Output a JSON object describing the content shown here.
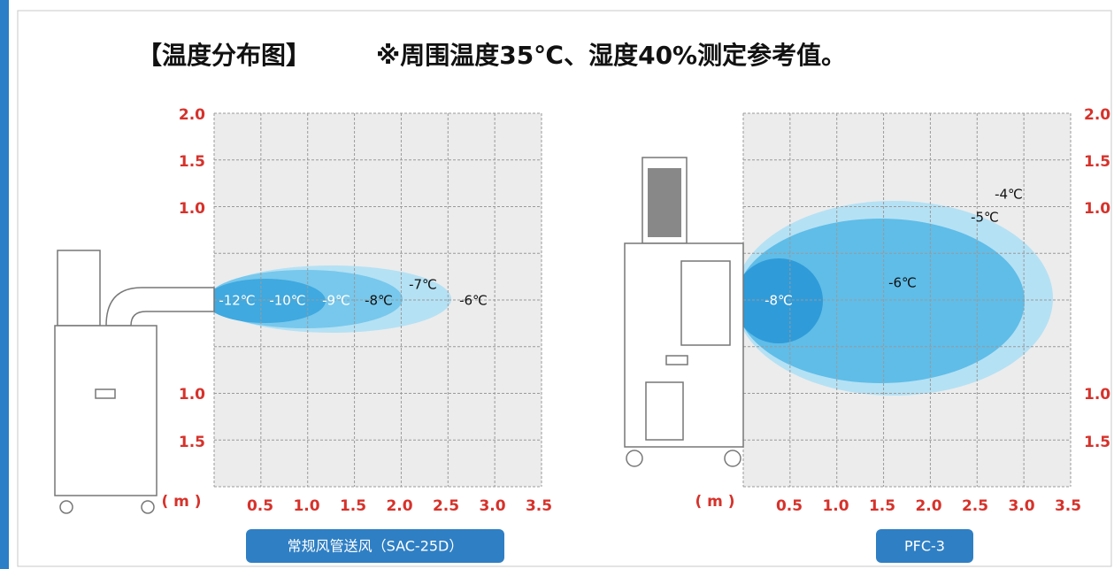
{
  "title": "【温度分布图】",
  "note": "※周围温度35℃、湿度40%测定参考值。",
  "panels": [
    {
      "y_labels": [
        "2.0",
        "1.5",
        "1.0",
        "1.0",
        "1.5"
      ],
      "x_labels": [
        "0.5",
        "1.0",
        "1.5",
        "2.0",
        "2.5",
        "3.0",
        "3.5"
      ],
      "unit": "( m )",
      "temps": [
        "-12℃",
        "-10℃",
        "-9℃",
        "-8℃",
        "-7℃",
        "-6℃"
      ],
      "caption": "常规风管送风（SAC-25D）"
    },
    {
      "y_labels": [
        "2.0",
        "1.5",
        "1.0",
        "1.0",
        "1.5"
      ],
      "x_labels": [
        "0.5",
        "1.0",
        "1.5",
        "2.0",
        "2.5",
        "3.0",
        "3.5"
      ],
      "unit": "( m )",
      "temps": [
        "-8℃",
        "-6℃",
        "-5℃",
        "-4℃"
      ],
      "caption": "PFC-3"
    }
  ]
}
